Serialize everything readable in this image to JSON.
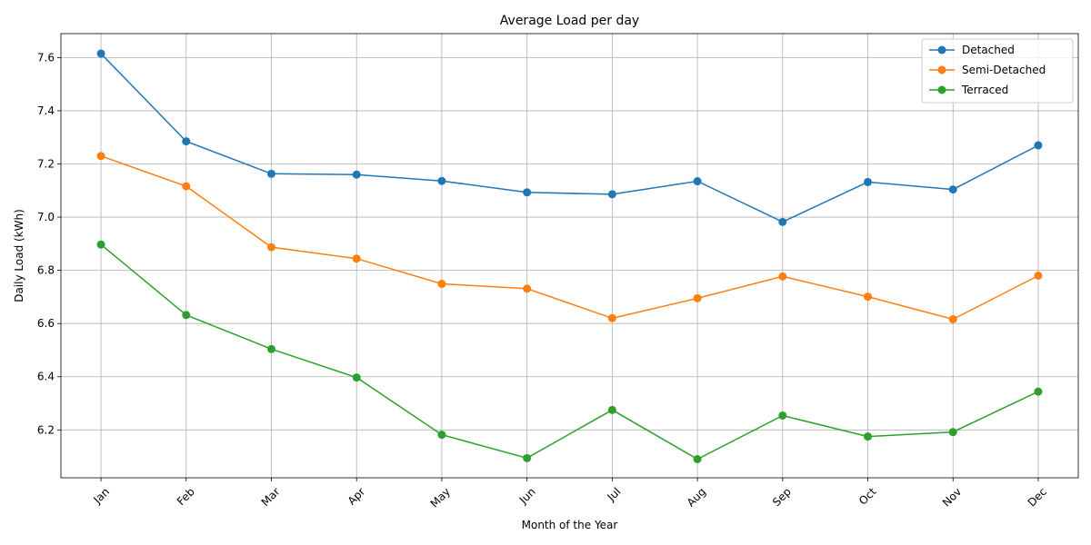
{
  "chart_data": {
    "type": "line",
    "title": "Average Load per day",
    "xlabel": "Month of the Year",
    "ylabel": "Daily Load (kWh)",
    "categories": [
      "Jan",
      "Feb",
      "Mar",
      "Apr",
      "May",
      "Jun",
      "Jul",
      "Aug",
      "Sep",
      "Oct",
      "Nov",
      "Dec"
    ],
    "ylim": [
      6.02,
      7.69
    ],
    "yticks": [
      "6.2",
      "6.4",
      "6.6",
      "6.8",
      "7.0",
      "7.2",
      "7.4",
      "7.6"
    ],
    "grid": true,
    "legend_position": "top-right",
    "series": [
      {
        "name": "Detached",
        "color": "#1f77b4",
        "values": [
          7.615,
          7.285,
          7.163,
          7.16,
          7.136,
          7.093,
          7.086,
          7.135,
          6.982,
          7.132,
          7.104,
          7.27
        ]
      },
      {
        "name": "Semi-Detached",
        "color": "#ff7f0e",
        "values": [
          7.23,
          7.116,
          6.887,
          6.844,
          6.749,
          6.731,
          6.62,
          6.695,
          6.777,
          6.701,
          6.616,
          6.78
        ]
      },
      {
        "name": "Terraced",
        "color": "#2ca02c",
        "values": [
          6.897,
          6.632,
          6.504,
          6.397,
          6.182,
          6.094,
          6.275,
          6.09,
          6.254,
          6.175,
          6.192,
          6.344
        ]
      }
    ]
  }
}
